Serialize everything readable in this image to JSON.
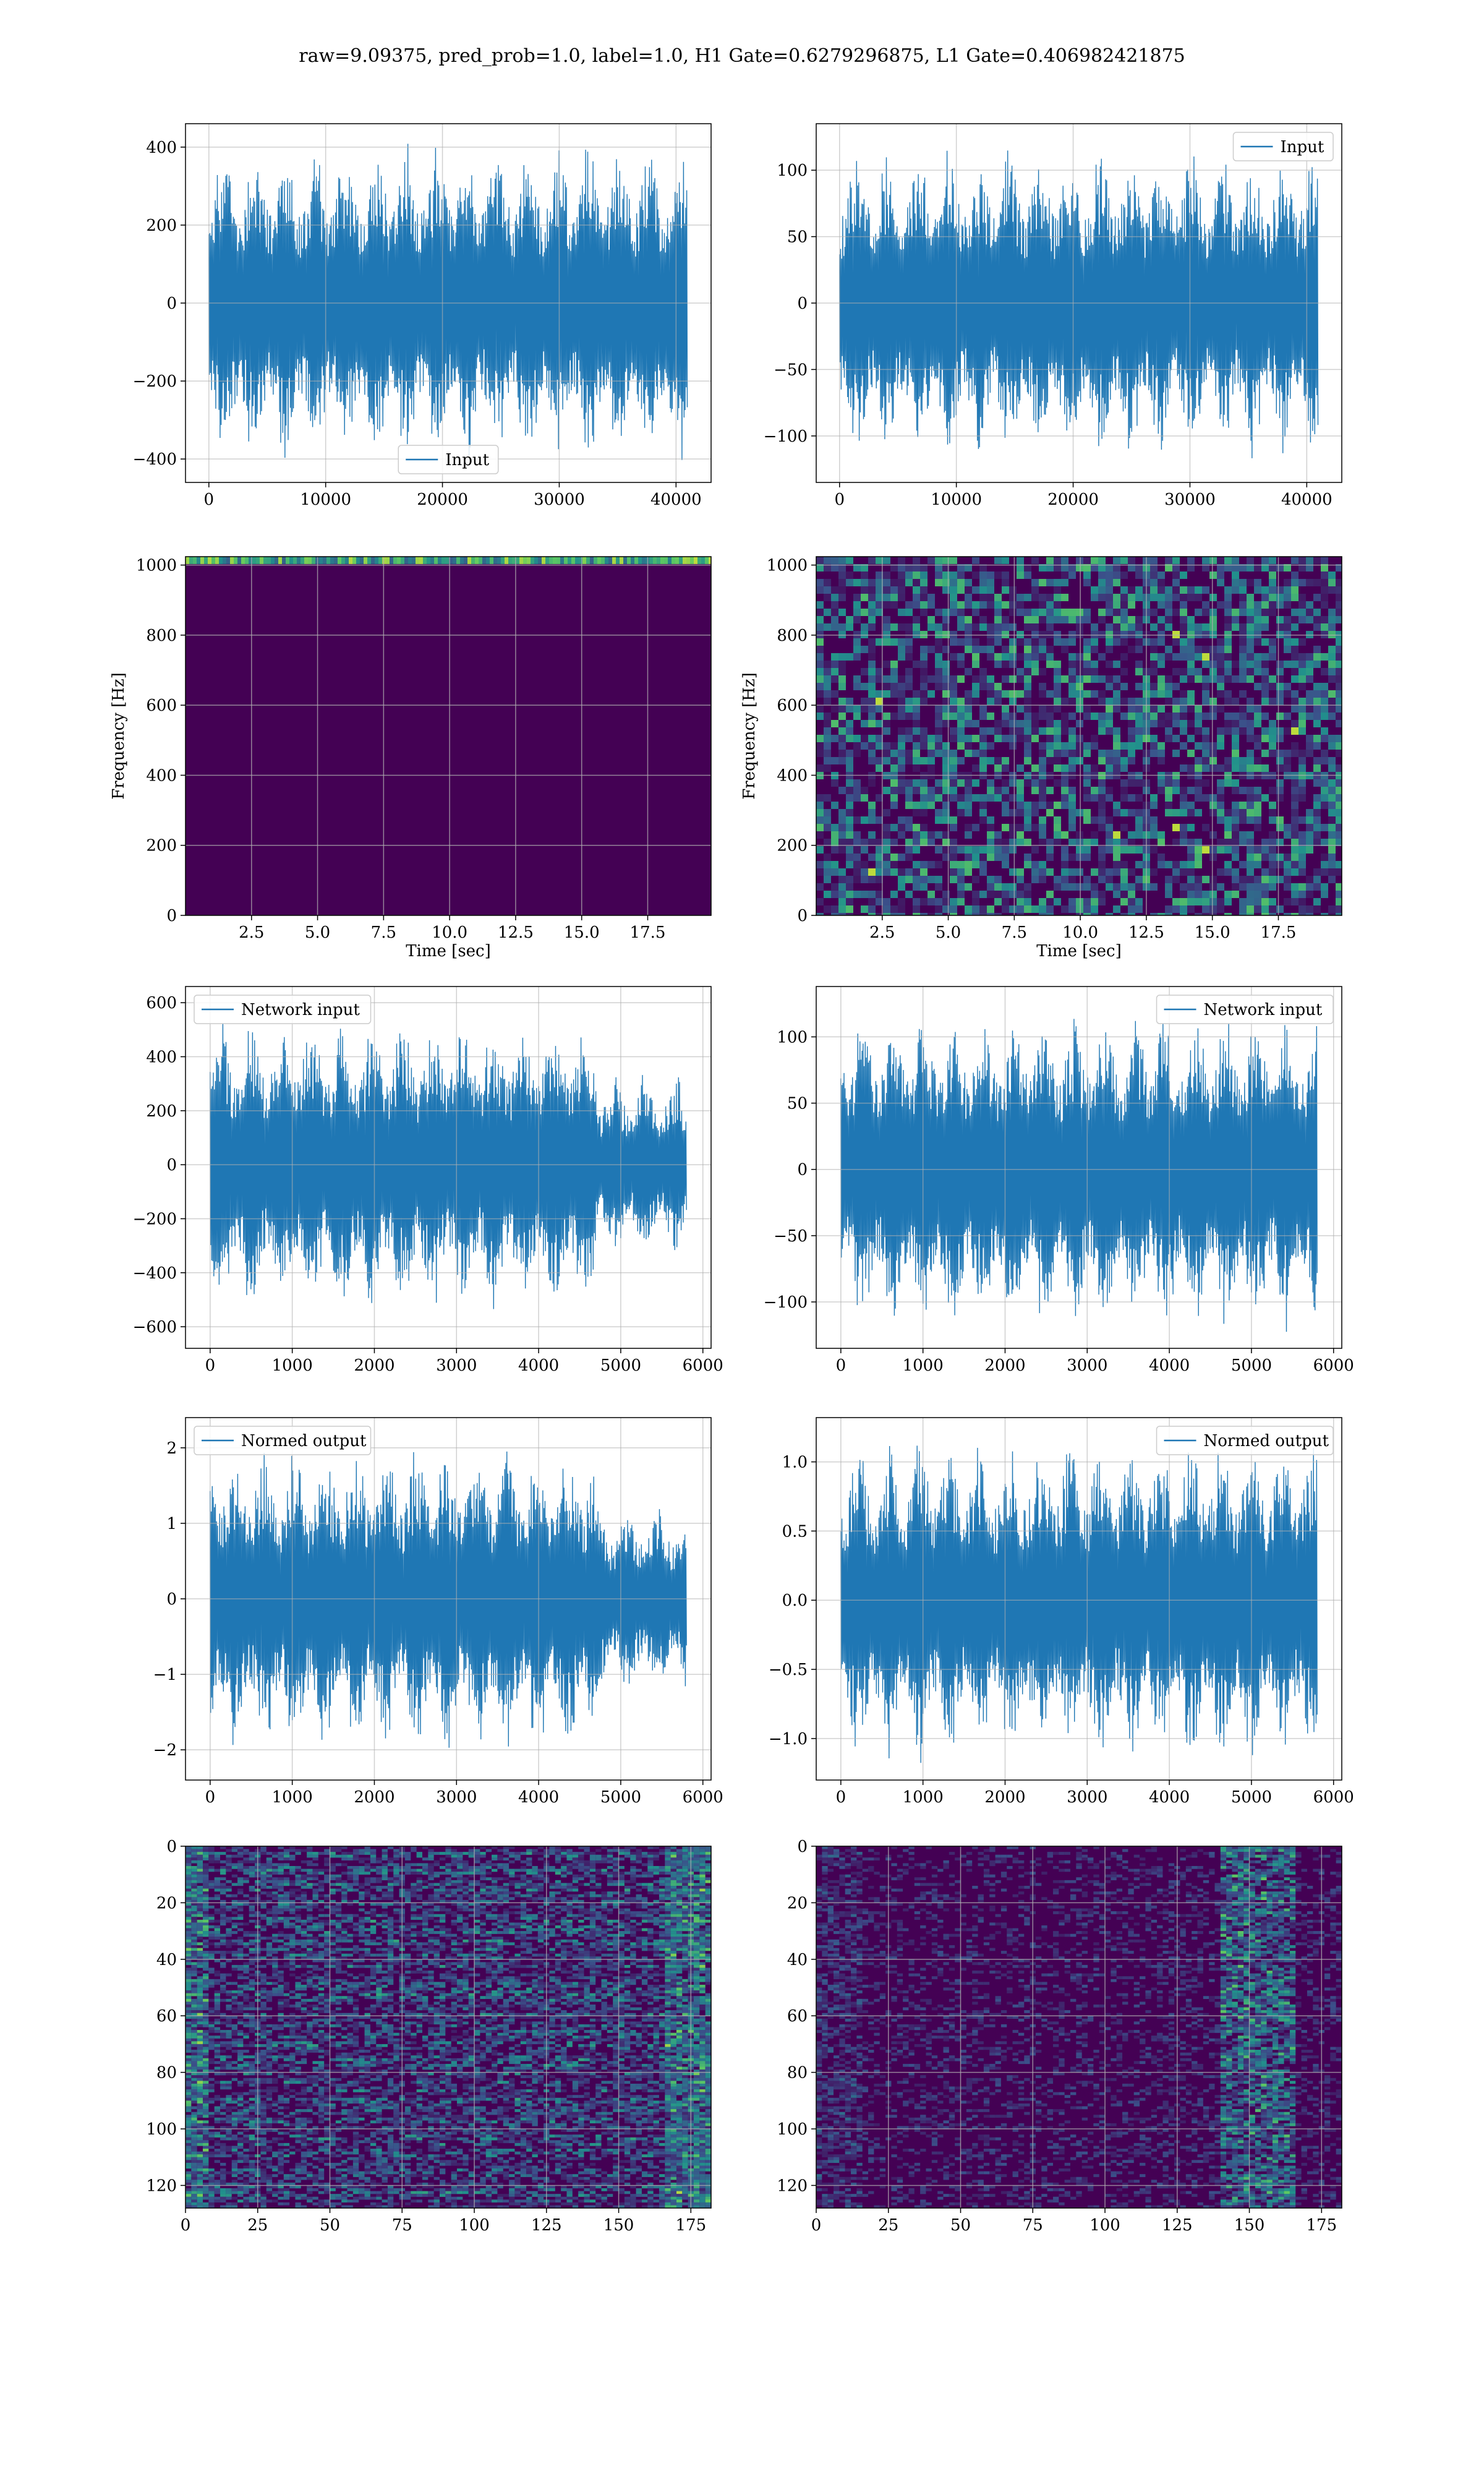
{
  "figure": {
    "title": "raw=9.09375, pred_prob=1.0, label=1.0, H1 Gate=0.6279296875, L1 Gate=0.406982421875"
  },
  "colors": {
    "line": "#1f77b4",
    "viridis_dark": "#440154",
    "grid": "#b0b0b0",
    "frame": "#000000"
  },
  "chart_data": [
    {
      "id": "h1-input",
      "type": "line",
      "series": [
        {
          "name": "Input",
          "amplitude": 420,
          "n": 40960,
          "seed": 11
        }
      ],
      "xlim": [
        -2000,
        43000
      ],
      "ylim": [
        -460,
        460
      ],
      "xticks": [
        0,
        10000,
        20000,
        30000,
        40000
      ],
      "xtick_labels": [
        "0",
        "10000",
        "20000",
        "30000",
        "40000"
      ],
      "yticks": [
        400,
        200,
        0,
        -200,
        -400
      ],
      "ytick_labels": [
        "400",
        "200",
        "0",
        "−200",
        "−400"
      ],
      "legend": "lower-center",
      "grid": true,
      "xlabel": "",
      "ylabel": ""
    },
    {
      "id": "l1-input",
      "type": "line",
      "series": [
        {
          "name": "Input",
          "amplitude": 120,
          "n": 40960,
          "seed": 23
        }
      ],
      "xlim": [
        -2000,
        43000
      ],
      "ylim": [
        -135,
        135
      ],
      "xticks": [
        0,
        10000,
        20000,
        30000,
        40000
      ],
      "xtick_labels": [
        "0",
        "10000",
        "20000",
        "30000",
        "40000"
      ],
      "yticks": [
        100,
        50,
        0,
        -50,
        -100
      ],
      "ytick_labels": [
        "100",
        "50",
        "0",
        "−50",
        "−100"
      ],
      "legend": "upper-right",
      "grid": true,
      "xlabel": "",
      "ylabel": ""
    },
    {
      "id": "h1-spectrogram",
      "type": "heatmap",
      "xlim": [
        0,
        19.9
      ],
      "ylim": [
        0,
        1024
      ],
      "xticks": [
        2.5,
        5.0,
        7.5,
        10.0,
        12.5,
        15.0,
        17.5
      ],
      "xtick_labels": [
        "2.5",
        "5.0",
        "7.5",
        "10.0",
        "12.5",
        "15.0",
        "17.5"
      ],
      "yticks": [
        0,
        200,
        400,
        600,
        800,
        1000
      ],
      "ytick_labels": [
        "0",
        "200",
        "400",
        "600",
        "800",
        "1000"
      ],
      "xlabel": "Time [sec]",
      "ylabel": "Frequency [Hz]",
      "grid": true,
      "colormap": "viridis",
      "pattern": "bright band near 1000 Hz, rest dark"
    },
    {
      "id": "l1-spectrogram",
      "type": "heatmap",
      "xlim": [
        0,
        19.9
      ],
      "ylim": [
        0,
        1024
      ],
      "xticks": [
        2.5,
        5.0,
        7.5,
        10.0,
        12.5,
        15.0,
        17.5
      ],
      "xtick_labels": [
        "2.5",
        "5.0",
        "7.5",
        "10.0",
        "12.5",
        "15.0",
        "17.5"
      ],
      "yticks": [
        0,
        200,
        400,
        600,
        800,
        1000
      ],
      "ytick_labels": [
        "0",
        "200",
        "400",
        "600",
        "800",
        "1000"
      ],
      "xlabel": "Time [sec]",
      "ylabel": "Frequency [Hz]",
      "grid": true,
      "colormap": "viridis",
      "pattern": "speckled noise across all frequencies"
    },
    {
      "id": "h1-network-input",
      "type": "line",
      "series": [
        {
          "name": "Network input",
          "amplitude": 560,
          "n": 5800,
          "seed": 37,
          "quiet_after": 4700
        }
      ],
      "xlim": [
        -300,
        6100
      ],
      "ylim": [
        -680,
        660
      ],
      "xticks": [
        0,
        1000,
        2000,
        3000,
        4000,
        5000,
        6000
      ],
      "xtick_labels": [
        "0",
        "1000",
        "2000",
        "3000",
        "4000",
        "5000",
        "6000"
      ],
      "yticks": [
        600,
        400,
        200,
        0,
        -200,
        -400,
        -600
      ],
      "ytick_labels": [
        "600",
        "400",
        "200",
        "0",
        "−200",
        "−400",
        "−600"
      ],
      "legend": "upper-left",
      "grid": true,
      "xlabel": "",
      "ylabel": ""
    },
    {
      "id": "l1-network-input",
      "type": "line",
      "series": [
        {
          "name": "Network input",
          "amplitude": 125,
          "n": 5800,
          "seed": 41
        }
      ],
      "xlim": [
        -300,
        6100
      ],
      "ylim": [
        -135,
        138
      ],
      "xticks": [
        0,
        1000,
        2000,
        3000,
        4000,
        5000,
        6000
      ],
      "xtick_labels": [
        "0",
        "1000",
        "2000",
        "3000",
        "4000",
        "5000",
        "6000"
      ],
      "yticks": [
        100,
        50,
        0,
        -50,
        -100
      ],
      "ytick_labels": [
        "100",
        "50",
        "0",
        "−50",
        "−100"
      ],
      "legend": "upper-right",
      "grid": true,
      "xlabel": "",
      "ylabel": ""
    },
    {
      "id": "h1-normed-output",
      "type": "line",
      "series": [
        {
          "name": "Normed output",
          "amplitude": 2.1,
          "n": 5800,
          "seed": 53,
          "quiet_after": 4700
        }
      ],
      "xlim": [
        -300,
        6100
      ],
      "ylim": [
        -2.4,
        2.4
      ],
      "xticks": [
        0,
        1000,
        2000,
        3000,
        4000,
        5000,
        6000
      ],
      "xtick_labels": [
        "0",
        "1000",
        "2000",
        "3000",
        "4000",
        "5000",
        "6000"
      ],
      "yticks": [
        2,
        1,
        0,
        -1,
        -2
      ],
      "ytick_labels": [
        "2",
        "1",
        "0",
        "−1",
        "−2"
      ],
      "legend": "upper-left",
      "grid": true,
      "xlabel": "",
      "ylabel": ""
    },
    {
      "id": "l1-normed-output",
      "type": "line",
      "series": [
        {
          "name": "Normed output",
          "amplitude": 1.2,
          "n": 5800,
          "seed": 67
        }
      ],
      "xlim": [
        -300,
        6100
      ],
      "ylim": [
        -1.3,
        1.32
      ],
      "xticks": [
        0,
        1000,
        2000,
        3000,
        4000,
        5000,
        6000
      ],
      "xtick_labels": [
        "0",
        "1000",
        "2000",
        "3000",
        "4000",
        "5000",
        "6000"
      ],
      "yticks": [
        1.0,
        0.5,
        0.0,
        -0.5,
        -1.0
      ],
      "ytick_labels": [
        "1.0",
        "0.5",
        "0.0",
        "−0.5",
        "−1.0"
      ],
      "legend": "upper-right",
      "grid": true,
      "xlabel": "",
      "ylabel": ""
    },
    {
      "id": "h1-feature-map",
      "type": "heatmap",
      "xlim": [
        0,
        182
      ],
      "ylim": [
        128,
        0
      ],
      "xticks": [
        0,
        25,
        50,
        75,
        100,
        125,
        150,
        175
      ],
      "xtick_labels": [
        "0",
        "25",
        "50",
        "75",
        "100",
        "125",
        "150",
        "175"
      ],
      "yticks": [
        0,
        20,
        40,
        60,
        80,
        100,
        120
      ],
      "ytick_labels": [
        "0",
        "20",
        "40",
        "60",
        "80",
        "100",
        "120"
      ],
      "grid": true,
      "colormap": "viridis",
      "xlabel": "",
      "ylabel": "",
      "pattern": "horizontal streaks throughout, bright bands near left and right edges"
    },
    {
      "id": "l1-feature-map",
      "type": "heatmap",
      "xlim": [
        0,
        182
      ],
      "ylim": [
        128,
        0
      ],
      "xticks": [
        0,
        25,
        50,
        75,
        100,
        125,
        150,
        175
      ],
      "xtick_labels": [
        "0",
        "25",
        "50",
        "75",
        "100",
        "125",
        "150",
        "175"
      ],
      "yticks": [
        0,
        20,
        40,
        60,
        80,
        100,
        120
      ],
      "ytick_labels": [
        "0",
        "20",
        "40",
        "60",
        "80",
        "100",
        "120"
      ],
      "grid": true,
      "colormap": "viridis",
      "xlabel": "",
      "ylabel": "",
      "pattern": "mostly dark, bright activity concentrated between x=140 and x=165"
    }
  ]
}
